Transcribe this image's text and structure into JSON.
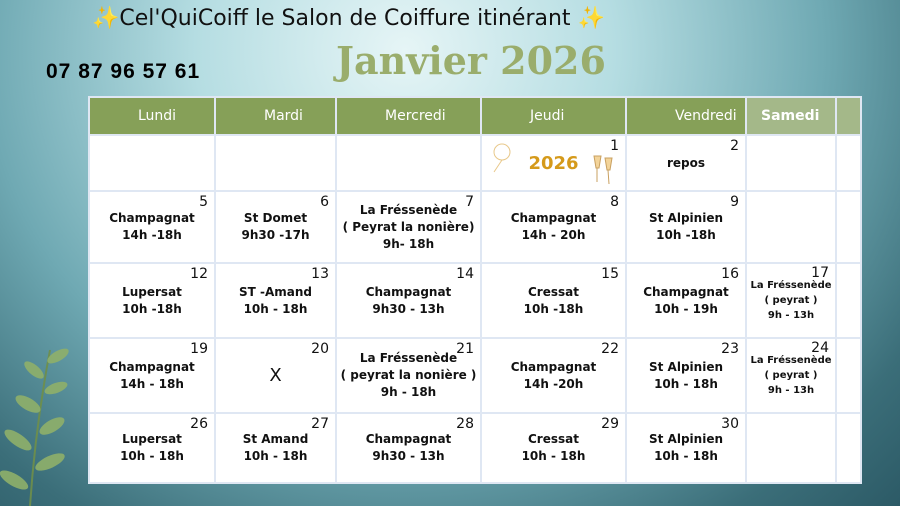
{
  "header": {
    "sparkle": "✨",
    "title": "Cel'QuiCoiff  le Salon de Coiffure itinérant",
    "phone": "07 87 96 57 61",
    "month": "Janvier 2026"
  },
  "days": [
    "Lundi",
    "Mardi",
    "Mercredi",
    "Jeudi",
    "Vendredi",
    "Samedi",
    ""
  ],
  "weeks": [
    [
      {
        "d": ""
      },
      {
        "d": ""
      },
      {
        "d": ""
      },
      {
        "d": "1",
        "lines": [
          "2026"
        ],
        "special": "new-year"
      },
      {
        "d": "2",
        "lines": [
          "repos"
        ]
      },
      {
        "d": ""
      },
      {
        "d": ""
      }
    ],
    [
      {
        "d": "5",
        "lines": [
          "Champagnat",
          "14h -18h"
        ]
      },
      {
        "d": "6",
        "lines": [
          "St Domet",
          "9h30 -17h"
        ]
      },
      {
        "d": "7",
        "lines": [
          "La Fréssenède",
          "( Peyrat la nonière)",
          "9h- 18h"
        ]
      },
      {
        "d": "8",
        "lines": [
          "Champagnat",
          "14h - 20h"
        ]
      },
      {
        "d": "9",
        "lines": [
          "St Alpinien",
          "10h -18h"
        ]
      },
      {
        "d": ""
      },
      {
        "d": ""
      }
    ],
    [
      {
        "d": "12",
        "lines": [
          "Lupersat",
          "10h -18h"
        ]
      },
      {
        "d": "13",
        "lines": [
          "ST -Amand",
          "10h - 18h"
        ]
      },
      {
        "d": "14",
        "lines": [
          "Champagnat",
          "9h30 - 13h"
        ]
      },
      {
        "d": "15",
        "lines": [
          "Cressat",
          "10h -18h"
        ]
      },
      {
        "d": "16",
        "lines": [
          "Champagnat",
          "10h - 19h"
        ]
      },
      {
        "d": "17",
        "lines": [
          "La Fréssenède",
          "( peyrat )",
          "9h - 13h"
        ],
        "small": true
      },
      {
        "d": ""
      }
    ],
    [
      {
        "d": "19",
        "lines": [
          "Champagnat",
          "14h - 18h"
        ]
      },
      {
        "d": "20",
        "lines": [
          "X"
        ],
        "big": true
      },
      {
        "d": "21",
        "lines": [
          "La Fréssenède",
          "( peyrat la nonière )",
          "9h - 18h"
        ]
      },
      {
        "d": "22",
        "lines": [
          "Champagnat",
          "14h -20h"
        ]
      },
      {
        "d": "23",
        "lines": [
          "St Alpinien",
          "10h - 18h"
        ]
      },
      {
        "d": "24",
        "lines": [
          "La Fréssenède",
          "( peyrat )",
          "9h - 13h"
        ],
        "small": true
      },
      {
        "d": ""
      }
    ],
    [
      {
        "d": "26",
        "lines": [
          "Lupersat",
          "10h - 18h"
        ]
      },
      {
        "d": "27",
        "lines": [
          "St Amand",
          "10h - 18h"
        ]
      },
      {
        "d": "28",
        "lines": [
          "Champagnat",
          "9h30 - 13h"
        ]
      },
      {
        "d": "29",
        "lines": [
          "Cressat",
          "10h - 18h"
        ]
      },
      {
        "d": "30",
        "lines": [
          "St Alpinien",
          "10h - 18h"
        ]
      },
      {
        "d": ""
      },
      {
        "d": ""
      }
    ]
  ],
  "colors": {
    "header_green": "#86a058",
    "month_green": "#9aad6c",
    "year_gold": "#d59a1b"
  }
}
